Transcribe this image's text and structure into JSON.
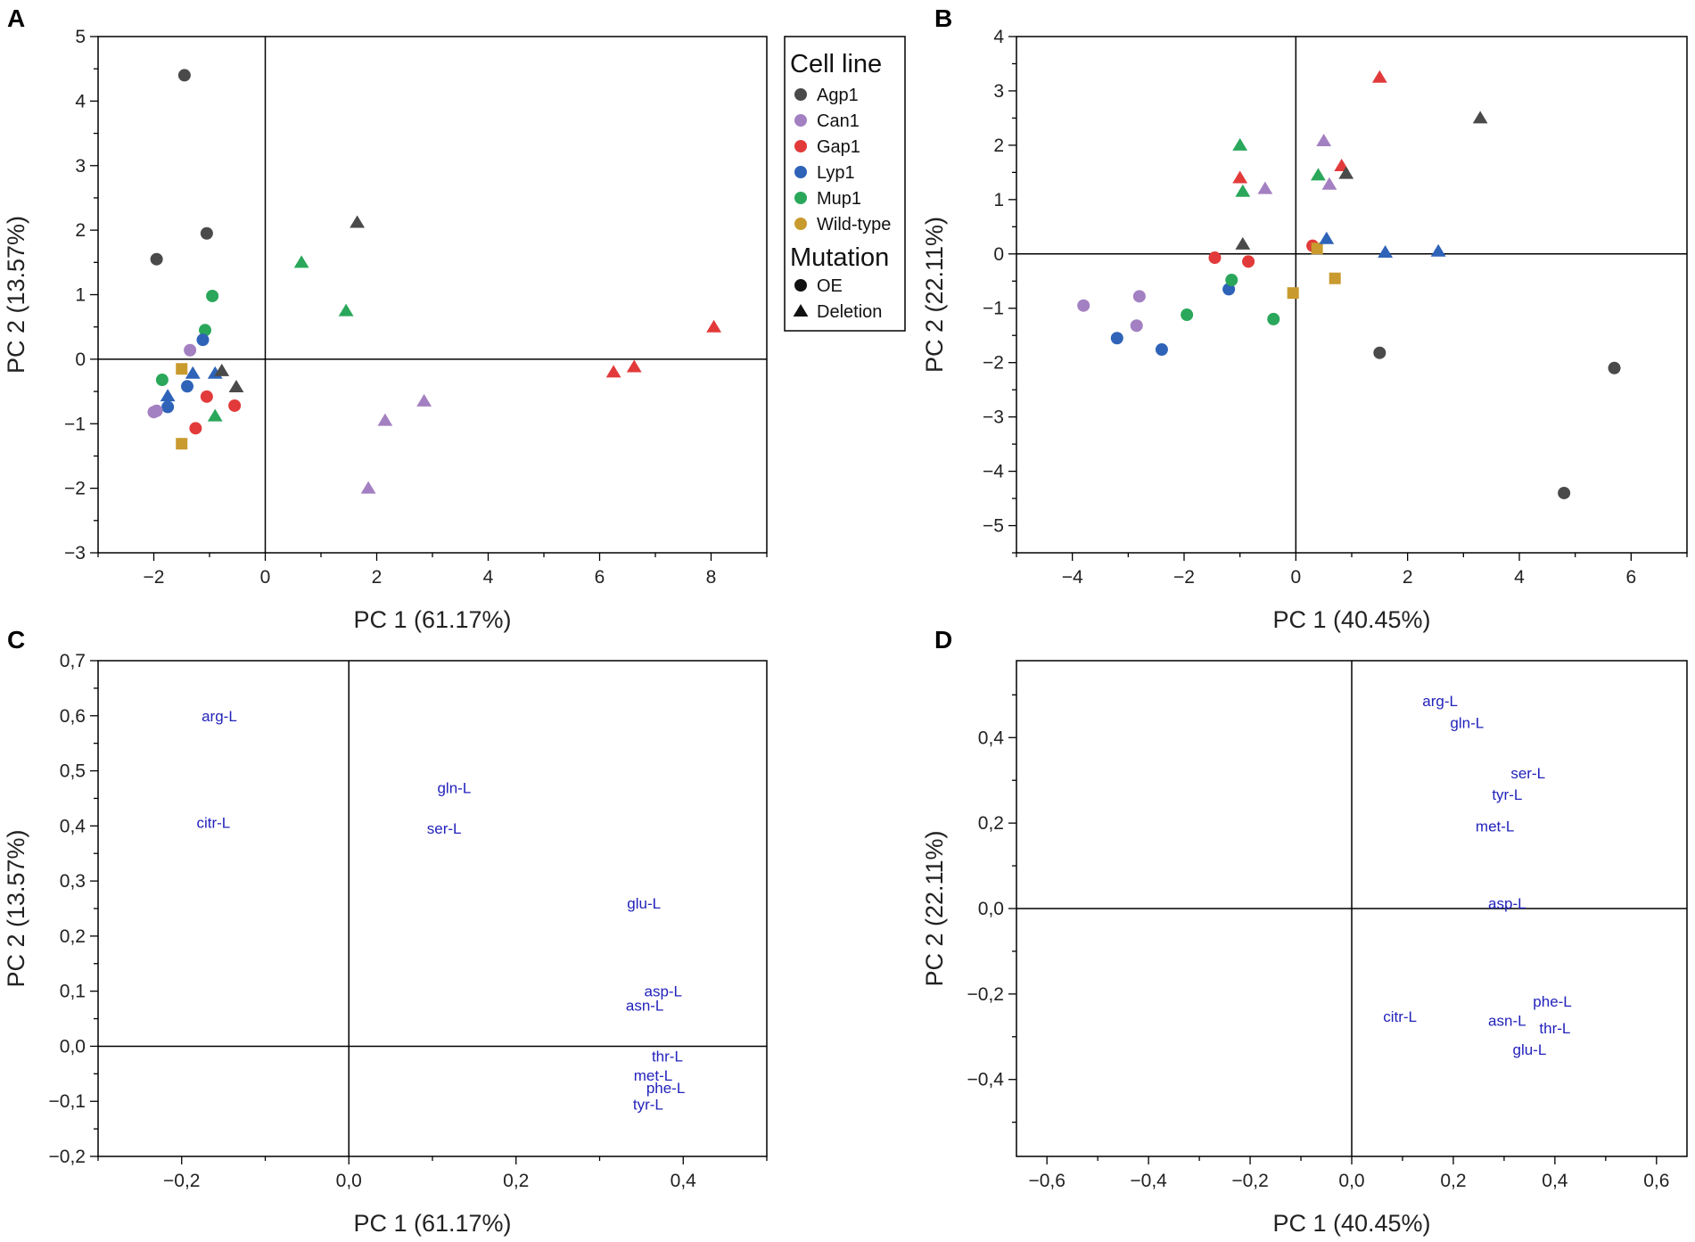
{
  "figure": {
    "panels": [
      "A",
      "B",
      "C",
      "D"
    ]
  },
  "legend": {
    "cell_line_title": "Cell line",
    "mutation_title": "Mutation",
    "cell_lines": [
      {
        "name": "Agp1",
        "color": "#4a4a4a"
      },
      {
        "name": "Can1",
        "color": "#a380c1"
      },
      {
        "name": "Gap1",
        "color": "#e23a3a"
      },
      {
        "name": "Lyp1",
        "color": "#2e63b8"
      },
      {
        "name": "Mup1",
        "color": "#2aa75a"
      },
      {
        "name": "Wild-type",
        "color": "#c99a2e"
      }
    ],
    "mutations": [
      {
        "name": "OE",
        "shape": "circle"
      },
      {
        "name": "Deletion",
        "shape": "triangle"
      }
    ]
  },
  "colors": {
    "loading_text": "#2222bb",
    "axis": "#000000"
  },
  "chart_data": [
    {
      "panel": "A",
      "type": "scatter",
      "xlabel": "PC 1 (61.17%)",
      "ylabel": "PC 2 (13.57%)",
      "xlim": [
        -3,
        9
      ],
      "ylim": [
        -3,
        5
      ],
      "xticks": [
        -2,
        0,
        2,
        4,
        6,
        8
      ],
      "yticks": [
        -3,
        -2,
        -1,
        0,
        1,
        2,
        3,
        4,
        5
      ],
      "decimal": ".",
      "points": [
        {
          "x": -1.45,
          "y": 4.4,
          "line": "Agp1",
          "shape": "circle"
        },
        {
          "x": -1.95,
          "y": 1.55,
          "line": "Agp1",
          "shape": "circle"
        },
        {
          "x": -1.05,
          "y": 1.95,
          "line": "Agp1",
          "shape": "circle"
        },
        {
          "x": -0.95,
          "y": 0.98,
          "line": "Mup1",
          "shape": "circle"
        },
        {
          "x": -1.08,
          "y": 0.45,
          "line": "Mup1",
          "shape": "circle"
        },
        {
          "x": -1.12,
          "y": 0.3,
          "line": "Lyp1",
          "shape": "circle"
        },
        {
          "x": -1.35,
          "y": 0.14,
          "line": "Can1",
          "shape": "circle"
        },
        {
          "x": -1.85,
          "y": -0.32,
          "line": "Mup1",
          "shape": "circle"
        },
        {
          "x": -1.4,
          "y": -0.42,
          "line": "Lyp1",
          "shape": "circle"
        },
        {
          "x": -1.05,
          "y": -0.58,
          "line": "Gap1",
          "shape": "circle"
        },
        {
          "x": -0.55,
          "y": -0.72,
          "line": "Gap1",
          "shape": "circle"
        },
        {
          "x": -1.75,
          "y": -0.74,
          "line": "Lyp1",
          "shape": "circle"
        },
        {
          "x": -2.0,
          "y": -0.82,
          "line": "Can1",
          "shape": "circle"
        },
        {
          "x": -1.95,
          "y": -0.8,
          "line": "Can1",
          "shape": "circle"
        },
        {
          "x": -1.25,
          "y": -1.07,
          "line": "Gap1",
          "shape": "circle"
        },
        {
          "x": -1.5,
          "y": -0.15,
          "line": "Wild-type",
          "shape": "square"
        },
        {
          "x": -1.5,
          "y": -1.31,
          "line": "Wild-type",
          "shape": "square"
        },
        {
          "x": -1.3,
          "y": -0.22,
          "line": "Lyp1",
          "shape": "triangle"
        },
        {
          "x": -0.9,
          "y": -0.22,
          "line": "Lyp1",
          "shape": "triangle"
        },
        {
          "x": -1.75,
          "y": -0.57,
          "line": "Lyp1",
          "shape": "triangle"
        },
        {
          "x": -0.9,
          "y": -0.88,
          "line": "Mup1",
          "shape": "triangle"
        },
        {
          "x": -0.78,
          "y": -0.18,
          "line": "Agp1",
          "shape": "triangle"
        },
        {
          "x": -0.52,
          "y": -0.43,
          "line": "Agp1",
          "shape": "triangle"
        },
        {
          "x": 0.65,
          "y": 1.5,
          "line": "Mup1",
          "shape": "triangle"
        },
        {
          "x": 1.45,
          "y": 0.75,
          "line": "Mup1",
          "shape": "triangle"
        },
        {
          "x": 1.65,
          "y": 2.12,
          "line": "Agp1",
          "shape": "triangle"
        },
        {
          "x": 2.15,
          "y": -0.95,
          "line": "Can1",
          "shape": "triangle"
        },
        {
          "x": 2.85,
          "y": -0.65,
          "line": "Can1",
          "shape": "triangle"
        },
        {
          "x": 1.85,
          "y": -2.0,
          "line": "Can1",
          "shape": "triangle"
        },
        {
          "x": 6.25,
          "y": -0.2,
          "line": "Gap1",
          "shape": "triangle"
        },
        {
          "x": 6.62,
          "y": -0.12,
          "line": "Gap1",
          "shape": "triangle"
        },
        {
          "x": 8.05,
          "y": 0.5,
          "line": "Gap1",
          "shape": "triangle"
        }
      ]
    },
    {
      "panel": "B",
      "type": "scatter",
      "xlabel": "PC 1 (40.45%)",
      "ylabel": "PC 2 (22.11%)",
      "xlim": [
        -5,
        7
      ],
      "ylim": [
        -5.5,
        4
      ],
      "xticks": [
        -4,
        -2,
        0,
        2,
        4,
        6
      ],
      "yticks": [
        -5,
        -4,
        -3,
        -2,
        -1,
        0,
        1,
        2,
        3,
        4
      ],
      "decimal": ".",
      "points": [
        {
          "x": -3.8,
          "y": -0.95,
          "line": "Can1",
          "shape": "circle"
        },
        {
          "x": -2.8,
          "y": -0.78,
          "line": "Can1",
          "shape": "circle"
        },
        {
          "x": -2.85,
          "y": -1.32,
          "line": "Can1",
          "shape": "circle"
        },
        {
          "x": -3.2,
          "y": -1.55,
          "line": "Lyp1",
          "shape": "circle"
        },
        {
          "x": -2.4,
          "y": -1.76,
          "line": "Lyp1",
          "shape": "circle"
        },
        {
          "x": -1.95,
          "y": -1.12,
          "line": "Mup1",
          "shape": "circle"
        },
        {
          "x": -1.2,
          "y": -0.65,
          "line": "Lyp1",
          "shape": "circle"
        },
        {
          "x": -1.15,
          "y": -0.48,
          "line": "Mup1",
          "shape": "circle"
        },
        {
          "x": -1.45,
          "y": -0.07,
          "line": "Gap1",
          "shape": "circle"
        },
        {
          "x": -0.85,
          "y": -0.14,
          "line": "Gap1",
          "shape": "circle"
        },
        {
          "x": -0.4,
          "y": -1.2,
          "line": "Mup1",
          "shape": "circle"
        },
        {
          "x": 0.3,
          "y": 0.15,
          "line": "Gap1",
          "shape": "circle"
        },
        {
          "x": 1.5,
          "y": -1.82,
          "line": "Agp1",
          "shape": "circle"
        },
        {
          "x": 5.7,
          "y": -2.1,
          "line": "Agp1",
          "shape": "circle"
        },
        {
          "x": 4.8,
          "y": -4.4,
          "line": "Agp1",
          "shape": "circle"
        },
        {
          "x": -0.05,
          "y": -0.72,
          "line": "Wild-type",
          "shape": "square"
        },
        {
          "x": 0.38,
          "y": 0.1,
          "line": "Wild-type",
          "shape": "square"
        },
        {
          "x": 0.7,
          "y": -0.45,
          "line": "Wild-type",
          "shape": "square"
        },
        {
          "x": -1.0,
          "y": 2.0,
          "line": "Mup1",
          "shape": "triangle"
        },
        {
          "x": -1.0,
          "y": 1.4,
          "line": "Gap1",
          "shape": "triangle"
        },
        {
          "x": -0.95,
          "y": 1.15,
          "line": "Mup1",
          "shape": "triangle"
        },
        {
          "x": -0.55,
          "y": 1.2,
          "line": "Can1",
          "shape": "triangle"
        },
        {
          "x": -0.95,
          "y": 0.18,
          "line": "Agp1",
          "shape": "triangle"
        },
        {
          "x": 0.5,
          "y": 2.08,
          "line": "Can1",
          "shape": "triangle"
        },
        {
          "x": 0.4,
          "y": 1.45,
          "line": "Mup1",
          "shape": "triangle"
        },
        {
          "x": 0.6,
          "y": 1.28,
          "line": "Can1",
          "shape": "triangle"
        },
        {
          "x": 0.82,
          "y": 1.62,
          "line": "Gap1",
          "shape": "triangle"
        },
        {
          "x": 0.9,
          "y": 1.48,
          "line": "Agp1",
          "shape": "triangle"
        },
        {
          "x": 0.55,
          "y": 0.28,
          "line": "Lyp1",
          "shape": "triangle"
        },
        {
          "x": 1.6,
          "y": 0.03,
          "line": "Lyp1",
          "shape": "triangle"
        },
        {
          "x": 2.55,
          "y": 0.05,
          "line": "Lyp1",
          "shape": "triangle"
        },
        {
          "x": 1.5,
          "y": 3.25,
          "line": "Gap1",
          "shape": "triangle"
        },
        {
          "x": 3.3,
          "y": 2.5,
          "line": "Agp1",
          "shape": "triangle"
        }
      ]
    },
    {
      "panel": "C",
      "type": "scatter",
      "xlabel": "PC 1 (61.17%)",
      "ylabel": "PC 2 (13.57%)",
      "xlim": [
        -0.3,
        0.5
      ],
      "ylim": [
        -0.2,
        0.7
      ],
      "xticks": [
        -0.2,
        0.0,
        0.2,
        0.4
      ],
      "yticks": [
        -0.2,
        -0.1,
        0.0,
        0.1,
        0.2,
        0.3,
        0.4,
        0.5,
        0.6,
        0.7
      ],
      "decimal": ",",
      "labels": [
        {
          "text": "arg-L",
          "x": -0.155,
          "y": 0.6
        },
        {
          "text": "citr-L",
          "x": -0.162,
          "y": 0.406
        },
        {
          "text": "gln-L",
          "x": 0.126,
          "y": 0.469
        },
        {
          "text": "ser-L",
          "x": 0.114,
          "y": 0.396
        },
        {
          "text": "glu-L",
          "x": 0.353,
          "y": 0.26
        },
        {
          "text": "asp-L",
          "x": 0.376,
          "y": 0.1
        },
        {
          "text": "asn-L",
          "x": 0.354,
          "y": 0.074
        },
        {
          "text": "thr-L",
          "x": 0.381,
          "y": -0.018
        },
        {
          "text": "met-L",
          "x": 0.364,
          "y": -0.053
        },
        {
          "text": "phe-L",
          "x": 0.379,
          "y": -0.075
        },
        {
          "text": "tyr-L",
          "x": 0.358,
          "y": -0.105
        }
      ]
    },
    {
      "panel": "D",
      "type": "scatter",
      "xlabel": "PC 1 (40.45%)",
      "ylabel": "PC 2 (22.11%)",
      "xlim": [
        -0.66,
        0.66
      ],
      "ylim": [
        -0.58,
        0.58
      ],
      "xticks": [
        -0.6,
        -0.4,
        -0.2,
        0.0,
        0.2,
        0.4,
        0.6
      ],
      "yticks": [
        -0.4,
        -0.2,
        0.0,
        0.2,
        0.4
      ],
      "decimal": ",",
      "labels": [
        {
          "text": "arg-L",
          "x": 0.174,
          "y": 0.486
        },
        {
          "text": "gln-L",
          "x": 0.227,
          "y": 0.435
        },
        {
          "text": "ser-L",
          "x": 0.347,
          "y": 0.317
        },
        {
          "text": "tyr-L",
          "x": 0.306,
          "y": 0.267
        },
        {
          "text": "met-L",
          "x": 0.282,
          "y": 0.193
        },
        {
          "text": "asp-L",
          "x": 0.306,
          "y": 0.012
        },
        {
          "text": "phe-L",
          "x": 0.395,
          "y": -0.217
        },
        {
          "text": "citr-L",
          "x": 0.095,
          "y": -0.252
        },
        {
          "text": "asn-L",
          "x": 0.306,
          "y": -0.262
        },
        {
          "text": "thr-L",
          "x": 0.4,
          "y": -0.28
        },
        {
          "text": "glu-L",
          "x": 0.35,
          "y": -0.33
        }
      ]
    }
  ]
}
